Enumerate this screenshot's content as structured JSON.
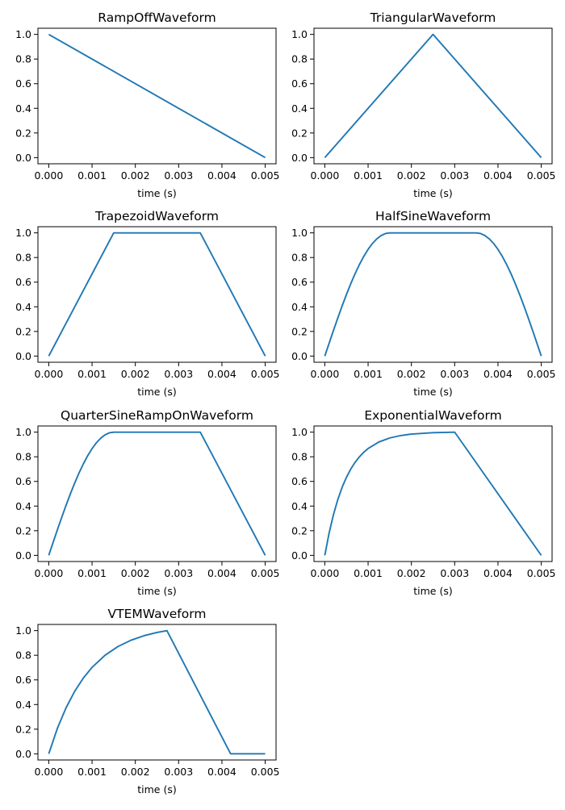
{
  "chart_data": [
    {
      "type": "line",
      "title": "RampOffWaveform",
      "xlabel": "time (s)",
      "ylabel": "",
      "xlim": [
        -0.00025,
        0.00525
      ],
      "ylim": [
        -0.05,
        1.05
      ],
      "xticks": [
        "0.000",
        "0.001",
        "0.002",
        "0.003",
        "0.004",
        "0.005"
      ],
      "yticks": [
        "0.0",
        "0.2",
        "0.4",
        "0.6",
        "0.8",
        "1.0"
      ],
      "grid": false,
      "color": "#1f77b4",
      "x": [
        0,
        0.005
      ],
      "y": [
        1,
        0
      ]
    },
    {
      "type": "line",
      "title": "TriangularWaveform",
      "xlabel": "time (s)",
      "ylabel": "",
      "xlim": [
        -0.00025,
        0.00525
      ],
      "ylim": [
        -0.05,
        1.05
      ],
      "xticks": [
        "0.000",
        "0.001",
        "0.002",
        "0.003",
        "0.004",
        "0.005"
      ],
      "yticks": [
        "0.0",
        "0.2",
        "0.4",
        "0.6",
        "0.8",
        "1.0"
      ],
      "grid": false,
      "color": "#1f77b4",
      "x": [
        0,
        0.0025,
        0.005
      ],
      "y": [
        0,
        1,
        0
      ]
    },
    {
      "type": "line",
      "title": "TrapezoidWaveform",
      "xlabel": "time (s)",
      "ylabel": "",
      "xlim": [
        -0.00025,
        0.00525
      ],
      "ylim": [
        -0.05,
        1.05
      ],
      "xticks": [
        "0.000",
        "0.001",
        "0.002",
        "0.003",
        "0.004",
        "0.005"
      ],
      "yticks": [
        "0.0",
        "0.2",
        "0.4",
        "0.6",
        "0.8",
        "1.0"
      ],
      "grid": false,
      "color": "#1f77b4",
      "x": [
        0,
        0.0015,
        0.0035,
        0.005
      ],
      "y": [
        0,
        1,
        1,
        0
      ]
    },
    {
      "type": "line",
      "title": "HalfSineWaveform",
      "xlabel": "time (s)",
      "ylabel": "",
      "xlim": [
        -0.00025,
        0.00525
      ],
      "ylim": [
        -0.05,
        1.05
      ],
      "xticks": [
        "0.000",
        "0.001",
        "0.002",
        "0.003",
        "0.004",
        "0.005"
      ],
      "yticks": [
        "0.0",
        "0.2",
        "0.4",
        "0.6",
        "0.8",
        "1.0"
      ],
      "grid": false,
      "color": "#1f77b4",
      "x": [
        0,
        0.0001,
        0.0002,
        0.0003,
        0.0004,
        0.0005,
        0.0006,
        0.0007,
        0.0008,
        0.0009,
        0.001,
        0.0011,
        0.0012,
        0.0013,
        0.0014,
        0.0015,
        0.0035,
        0.0036,
        0.0037,
        0.0038,
        0.0039,
        0.004,
        0.0041,
        0.0042,
        0.0043,
        0.0044,
        0.0045,
        0.0046,
        0.0047,
        0.0048,
        0.0049,
        0.005
      ],
      "y": [
        0,
        0.1045,
        0.2079,
        0.309,
        0.4067,
        0.5,
        0.5878,
        0.6691,
        0.7431,
        0.809,
        0.866,
        0.9135,
        0.9511,
        0.9781,
        0.9945,
        1,
        1,
        0.9945,
        0.9781,
        0.9511,
        0.9135,
        0.866,
        0.809,
        0.7431,
        0.6691,
        0.5878,
        0.5,
        0.4067,
        0.309,
        0.2079,
        0.1045,
        0
      ]
    },
    {
      "type": "line",
      "title": "QuarterSineRampOnWaveform",
      "xlabel": "time (s)",
      "ylabel": "",
      "xlim": [
        -0.00025,
        0.00525
      ],
      "ylim": [
        -0.05,
        1.05
      ],
      "xticks": [
        "0.000",
        "0.001",
        "0.002",
        "0.003",
        "0.004",
        "0.005"
      ],
      "yticks": [
        "0.0",
        "0.2",
        "0.4",
        "0.6",
        "0.8",
        "1.0"
      ],
      "grid": false,
      "color": "#1f77b4",
      "x": [
        0,
        0.0001,
        0.0002,
        0.0003,
        0.0004,
        0.0005,
        0.0006,
        0.0007,
        0.0008,
        0.0009,
        0.001,
        0.0011,
        0.0012,
        0.0013,
        0.0014,
        0.0015,
        0.0035,
        0.005
      ],
      "y": [
        0,
        0.1045,
        0.2079,
        0.309,
        0.4067,
        0.5,
        0.5878,
        0.6691,
        0.7431,
        0.809,
        0.866,
        0.9135,
        0.9511,
        0.9781,
        0.9945,
        1,
        1,
        0
      ]
    },
    {
      "type": "line",
      "title": "ExponentialWaveform",
      "xlabel": "time (s)",
      "ylabel": "",
      "xlim": [
        -0.00025,
        0.00525
      ],
      "ylim": [
        -0.05,
        1.05
      ],
      "xticks": [
        "0.000",
        "0.001",
        "0.002",
        "0.003",
        "0.004",
        "0.005"
      ],
      "yticks": [
        "0.0",
        "0.2",
        "0.4",
        "0.6",
        "0.8",
        "1.0"
      ],
      "grid": false,
      "color": "#1f77b4",
      "x": [
        0,
        0.0001,
        0.0002,
        0.0003,
        0.0004,
        0.0005,
        0.0006,
        0.0007,
        0.0008,
        0.0009,
        0.001,
        0.00125,
        0.0015,
        0.00175,
        0.002,
        0.0025,
        0.003,
        0.005
      ],
      "y": [
        0,
        0.1818,
        0.3305,
        0.4523,
        0.5521,
        0.6337,
        0.7005,
        0.7553,
        0.8001,
        0.8368,
        0.8668,
        0.9202,
        0.9526,
        0.9722,
        0.9842,
        0.9958,
        1,
        0
      ]
    },
    {
      "type": "line",
      "title": "VTEMWaveform",
      "xlabel": "time (s)",
      "ylabel": "",
      "xlim": [
        -0.00025,
        0.00525
      ],
      "ylim": [
        -0.05,
        1.05
      ],
      "xticks": [
        "0.000",
        "0.001",
        "0.002",
        "0.003",
        "0.004",
        "0.005"
      ],
      "yticks": [
        "0.0",
        "0.2",
        "0.4",
        "0.6",
        "0.8",
        "1.0"
      ],
      "grid": false,
      "color": "#1f77b4",
      "x": [
        0,
        0.0002,
        0.0004,
        0.0006,
        0.0008,
        0.001,
        0.0013,
        0.0016,
        0.0019,
        0.0022,
        0.0025,
        0.00273,
        0.0042,
        0.005
      ],
      "y": [
        0,
        0.2076,
        0.3743,
        0.5081,
        0.6155,
        0.7016,
        0.8001,
        0.8711,
        0.9219,
        0.9586,
        0.9849,
        1,
        0,
        0
      ]
    }
  ]
}
